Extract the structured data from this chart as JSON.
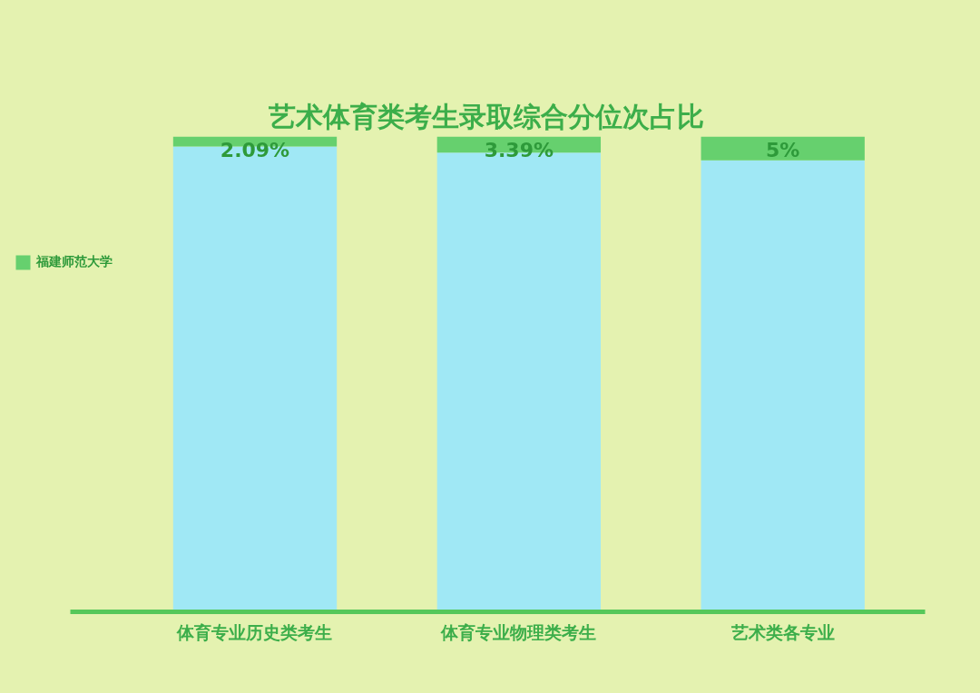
{
  "chart_data": {
    "type": "bar",
    "title": "艺术体育类考生录取综合分位次占比",
    "categories": [
      "体育专业历史类考生",
      "体育专业物理类考生",
      "艺术类各专业"
    ],
    "stacked": true,
    "ylim": [
      0,
      100
    ],
    "tick_labels": "x",
    "grid": false,
    "legend": "left",
    "series": [
      {
        "color": "#a0e8f5",
        "values": [
          97.91,
          96.61,
          95
        ]
      },
      {
        "name": "福建师范大学",
        "color": "#66d06e",
        "values": [
          2.09,
          3.39,
          5
        ],
        "value_labels": [
          "2.09%",
          "3.39%",
          "5%"
        ]
      }
    ]
  }
}
